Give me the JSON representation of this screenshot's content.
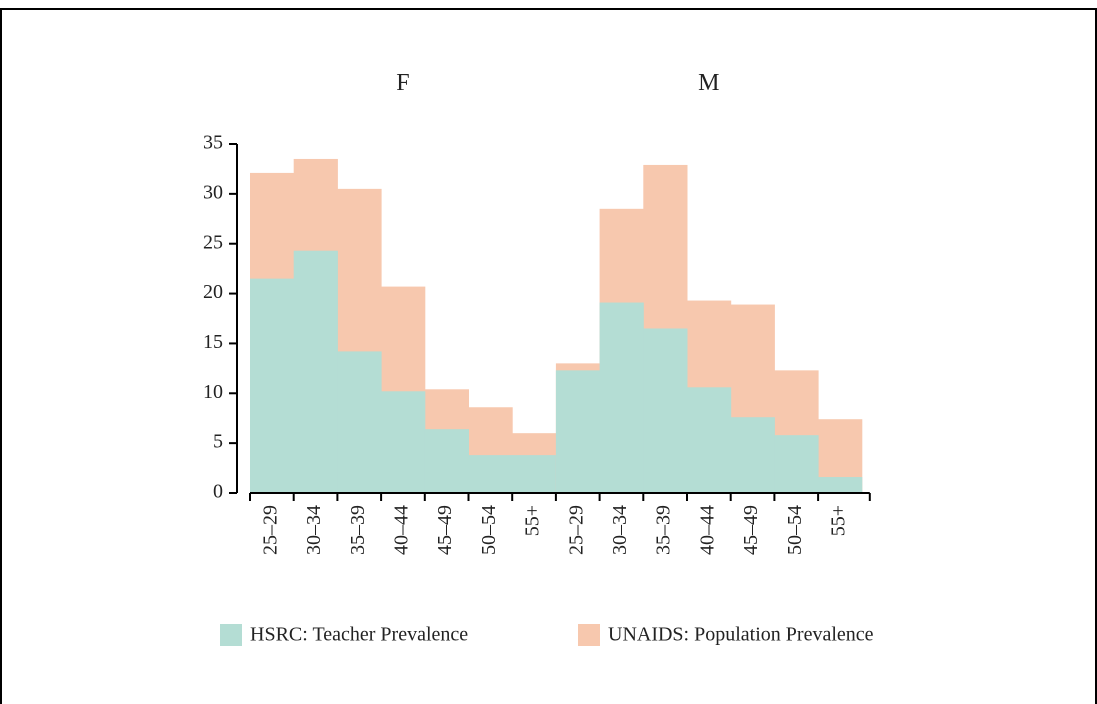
{
  "chart_data": {
    "type": "step-area",
    "ylim": [
      0,
      35
    ],
    "yticks": [
      0,
      5,
      10,
      15,
      20,
      25,
      30,
      35
    ],
    "series": [
      {
        "name": "UNAIDS: Population Prevalence",
        "color": "#f7c8ae"
      },
      {
        "name": "HSRC: Teacher Prevalence",
        "color": "#b4ddd4"
      }
    ],
    "panels": [
      {
        "title": "F",
        "categories": [
          "25–29",
          "30–34",
          "35–39",
          "40–44",
          "45–49",
          "50–54",
          "55+"
        ],
        "values": [
          [
            32.1,
            33.5,
            30.5,
            20.7,
            10.4,
            8.6,
            6.0
          ],
          [
            21.5,
            24.3,
            14.2,
            10.2,
            6.4,
            3.8,
            3.8
          ]
        ]
      },
      {
        "title": "M",
        "categories": [
          "25–29",
          "30–34",
          "35–39",
          "40–44",
          "45–49",
          "50–54",
          "55+"
        ],
        "values": [
          [
            13.0,
            28.5,
            32.9,
            19.3,
            18.9,
            12.3,
            7.4
          ],
          [
            12.3,
            19.1,
            16.5,
            10.6,
            7.6,
            5.8,
            1.6
          ]
        ]
      }
    ]
  }
}
